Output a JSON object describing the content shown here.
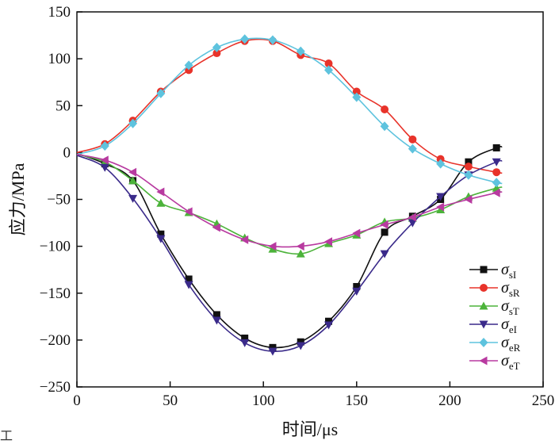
{
  "chart_data": {
    "type": "line",
    "title": "",
    "xlabel": "时间/μs",
    "ylabel": "应力/MPa",
    "xlim": [
      0,
      250
    ],
    "ylim": [
      -250,
      150
    ],
    "xticks": [
      0,
      50,
      100,
      150,
      200,
      250
    ],
    "yticks": [
      150,
      100,
      50,
      0,
      -50,
      -100,
      -150,
      -200,
      -250
    ],
    "xtick_labels": [
      "0",
      "50",
      "100",
      "150",
      "200",
      "250"
    ],
    "ytick_labels": [
      "150",
      "100",
      "50",
      "0",
      "−50",
      "−100",
      "−150",
      "−200",
      "−250"
    ],
    "grid": false,
    "legend_position": "bottom-right",
    "series": [
      {
        "name": "σsI",
        "symbol": "σ",
        "subscript": "sI",
        "color": "#111111",
        "marker": "square",
        "x": [
          0,
          15,
          30,
          45,
          60,
          75,
          90,
          105,
          120,
          135,
          150,
          165,
          180,
          195,
          210,
          225,
          228
        ],
        "y": [
          -1,
          -12,
          -30,
          -87,
          -135,
          -173,
          -198,
          -208,
          -202,
          -180,
          -143,
          -85,
          -68,
          -50,
          -10,
          5,
          6
        ]
      },
      {
        "name": "σsR",
        "symbol": "σ",
        "subscript": "sR",
        "color": "#e8332a",
        "marker": "circle",
        "x": [
          0,
          15,
          30,
          45,
          60,
          75,
          90,
          105,
          120,
          135,
          150,
          165,
          180,
          195,
          210,
          225,
          228
        ],
        "y": [
          0,
          9,
          34,
          65,
          88,
          106,
          119,
          119,
          104,
          95,
          65,
          46,
          14,
          -7,
          -15,
          -21,
          -22
        ]
      },
      {
        "name": "σsT",
        "symbol": "σ",
        "subscript": "sT",
        "color": "#4cb33a",
        "marker": "triangle-up",
        "x": [
          0,
          15,
          30,
          45,
          60,
          75,
          90,
          105,
          120,
          135,
          150,
          165,
          180,
          195,
          210,
          225,
          228
        ],
        "y": [
          -2,
          -10,
          -30,
          -54,
          -64,
          -76,
          -91,
          -103,
          -108,
          -97,
          -88,
          -74,
          -70,
          -61,
          -47,
          -38,
          -37
        ]
      },
      {
        "name": "σeI",
        "symbol": "σ",
        "subscript": "eI",
        "color": "#3a2a8a",
        "marker": "triangle-down",
        "x": [
          0,
          15,
          30,
          45,
          60,
          75,
          90,
          105,
          120,
          135,
          150,
          165,
          180,
          195,
          210,
          225,
          228
        ],
        "y": [
          -3,
          -16,
          -49,
          -92,
          -141,
          -179,
          -203,
          -212,
          -206,
          -184,
          -148,
          -108,
          -75,
          -47,
          -24,
          -10,
          -9
        ]
      },
      {
        "name": "σeR",
        "symbol": "σ",
        "subscript": "eR",
        "color": "#5ec3de",
        "marker": "diamond",
        "x": [
          0,
          15,
          30,
          45,
          60,
          75,
          90,
          105,
          120,
          135,
          150,
          165,
          180,
          195,
          210,
          225,
          228
        ],
        "y": [
          -2,
          7,
          31,
          63,
          93,
          112,
          121,
          120,
          108,
          88,
          59,
          28,
          4,
          -12,
          -24,
          -32,
          -33
        ]
      },
      {
        "name": "σeT",
        "symbol": "σ",
        "subscript": "eT",
        "color": "#b83aa0",
        "marker": "triangle-left",
        "x": [
          0,
          15,
          30,
          45,
          60,
          75,
          90,
          105,
          120,
          135,
          150,
          165,
          180,
          195,
          210,
          225,
          228
        ],
        "y": [
          -2,
          -8,
          -21,
          -42,
          -63,
          -80,
          -93,
          -100,
          -100,
          -95,
          -86,
          -77,
          -69,
          -58,
          -50,
          -43,
          -42
        ]
      }
    ]
  },
  "stray_text": "工"
}
